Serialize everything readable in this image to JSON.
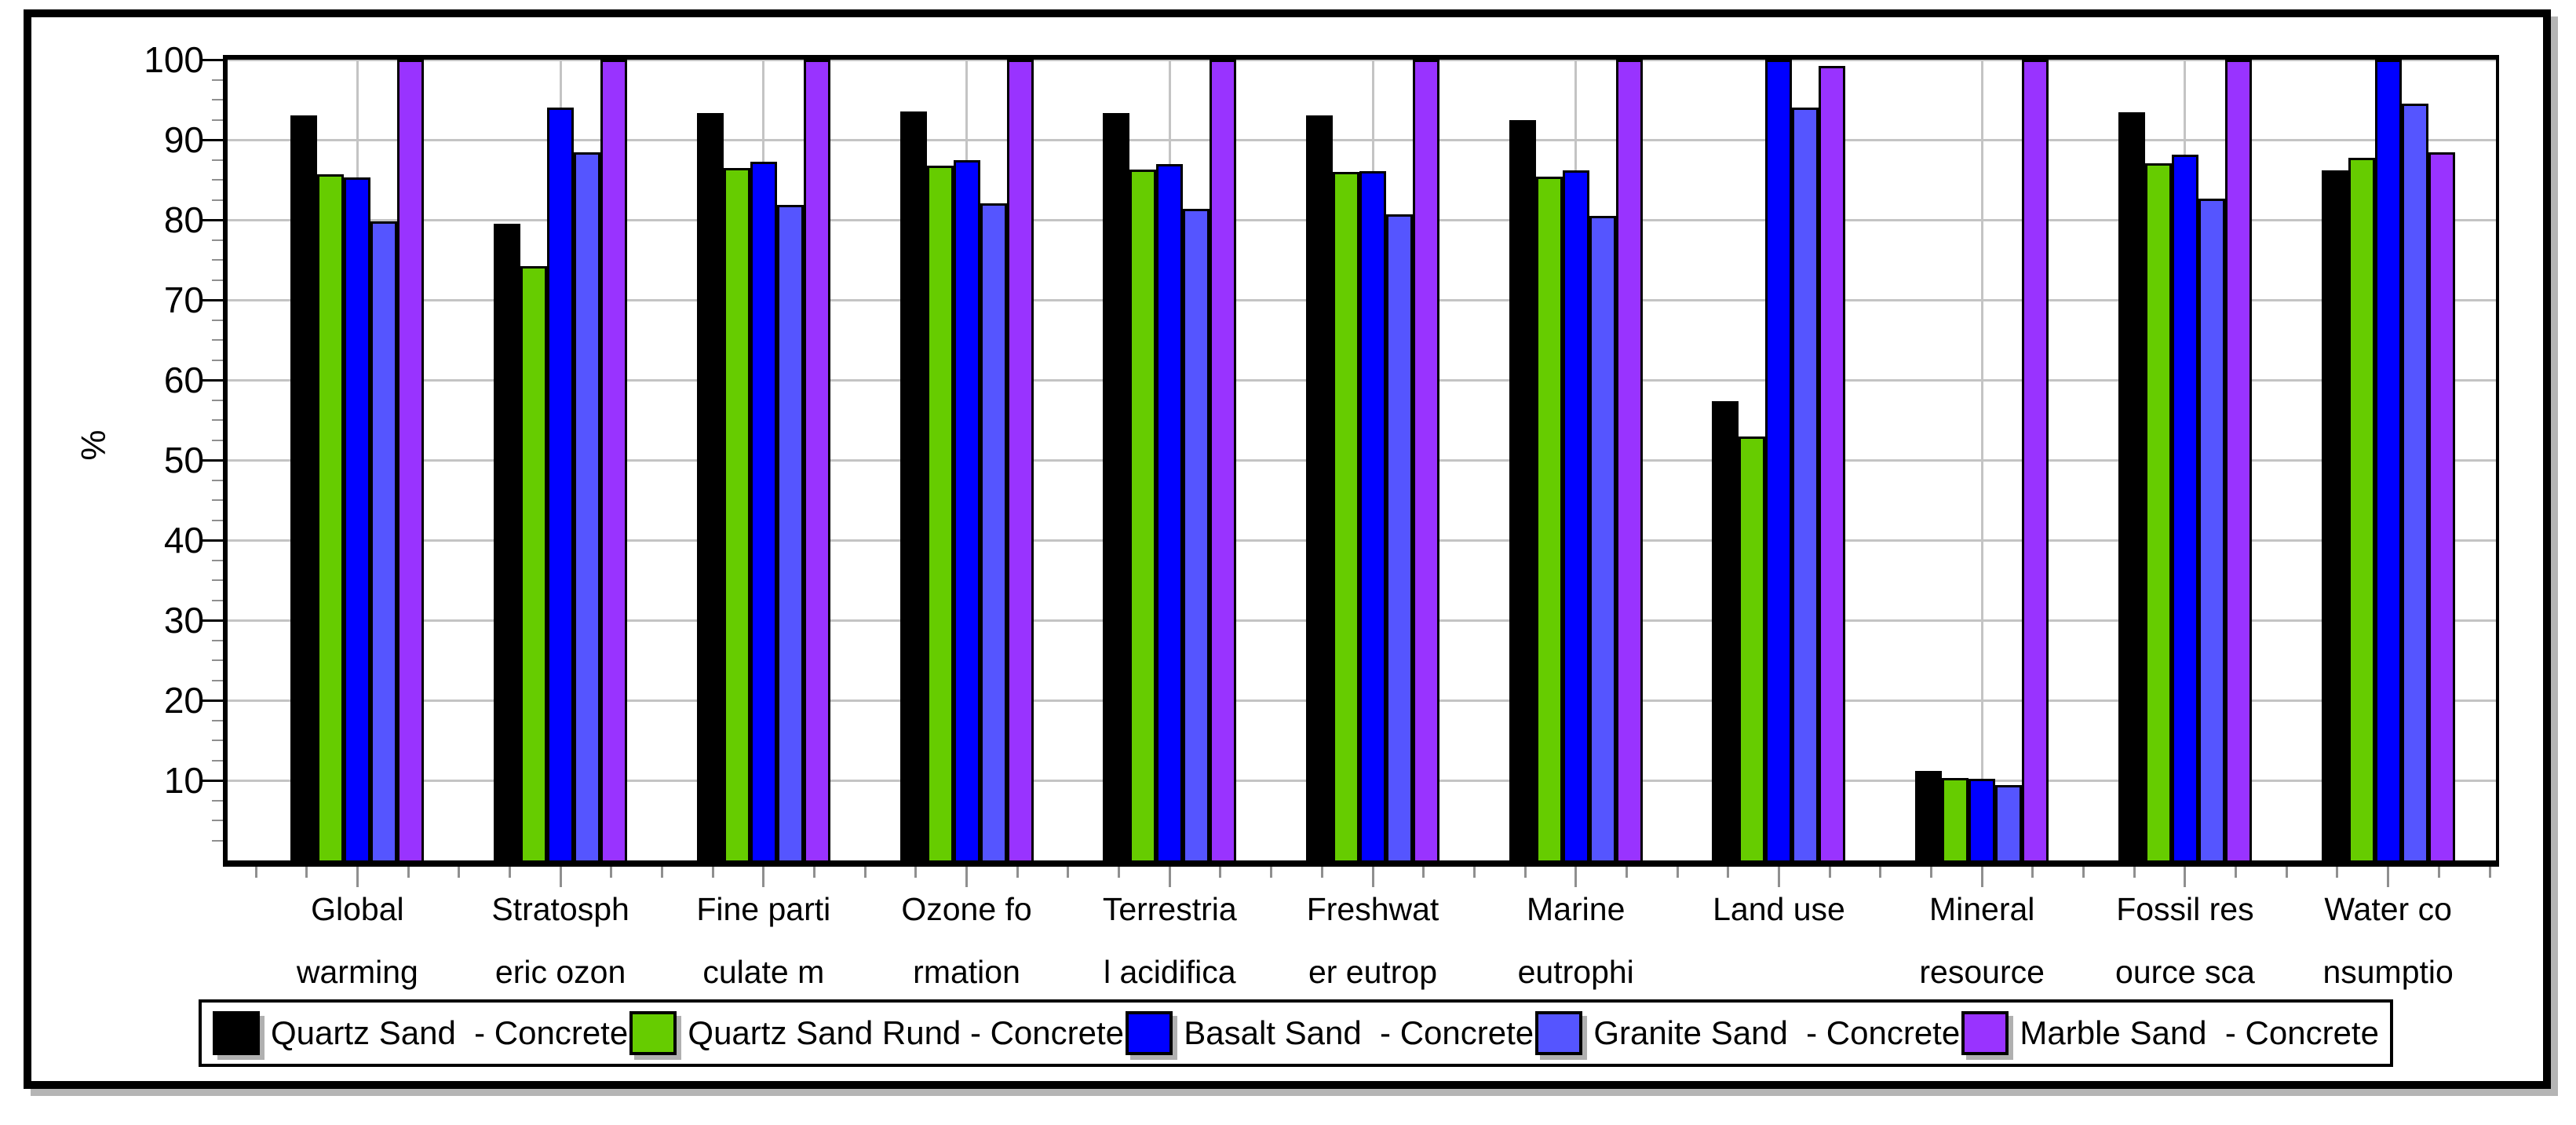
{
  "chart_data": {
    "type": "bar",
    "title": "",
    "xlabel": "",
    "ylabel": "%",
    "ylim": [
      0,
      100
    ],
    "ytick_step": 10,
    "yticks": [
      10,
      20,
      30,
      40,
      50,
      60,
      70,
      80,
      90,
      100
    ],
    "yminor_step": 2.5,
    "grid": true,
    "gridlines": "horizontal-major and vertical-at-category-centers",
    "legend_position": "bottom",
    "categories": [
      "Global\nwarming",
      "Stratosph\neric ozon",
      "Fine parti\nculate m",
      "Ozone fo\nrmation",
      "Terrestria\nl acidifica",
      "Freshwat\ner eutrop",
      "Marine\neutrophi",
      "Land use",
      "Mineral\nresource",
      "Fossil res\nource sca",
      "Water co\nnsumptio"
    ],
    "series": [
      {
        "name": "Quartz Sand  - Concrete",
        "color": "#000000",
        "values": [
          93.0,
          79.5,
          93.3,
          93.5,
          93.3,
          93.0,
          92.5,
          57.4,
          11.2,
          93.4,
          86.2
        ]
      },
      {
        "name": "Quartz Sand Rund - Concrete",
        "color": "#66CC00",
        "values": [
          85.7,
          74.2,
          86.5,
          86.8,
          86.3,
          86.0,
          85.4,
          52.9,
          10.3,
          87.1,
          87.7
        ]
      },
      {
        "name": "Basalt Sand  - Concrete",
        "color": "#0000FF",
        "values": [
          85.3,
          94.0,
          87.3,
          87.5,
          87.0,
          86.1,
          86.2,
          100.0,
          10.2,
          88.1,
          100.0
        ]
      },
      {
        "name": "Granite Sand  - Concrete",
        "color": "#5555FF",
        "values": [
          79.8,
          88.4,
          81.9,
          82.1,
          81.4,
          80.7,
          80.5,
          94.0,
          9.4,
          82.6,
          94.5
        ]
      },
      {
        "name": "Marble Sand  - Concrete",
        "color": "#9933FF",
        "values": [
          100.0,
          100.0,
          100.0,
          100.0,
          100.0,
          100.0,
          100.0,
          99.2,
          100.0,
          100.0,
          88.4
        ]
      }
    ],
    "colors": {
      "grid": "#C4C4C4",
      "axis": "#000000",
      "minor_tick": "#8F8F8F",
      "background": "#FFFFFF"
    }
  }
}
